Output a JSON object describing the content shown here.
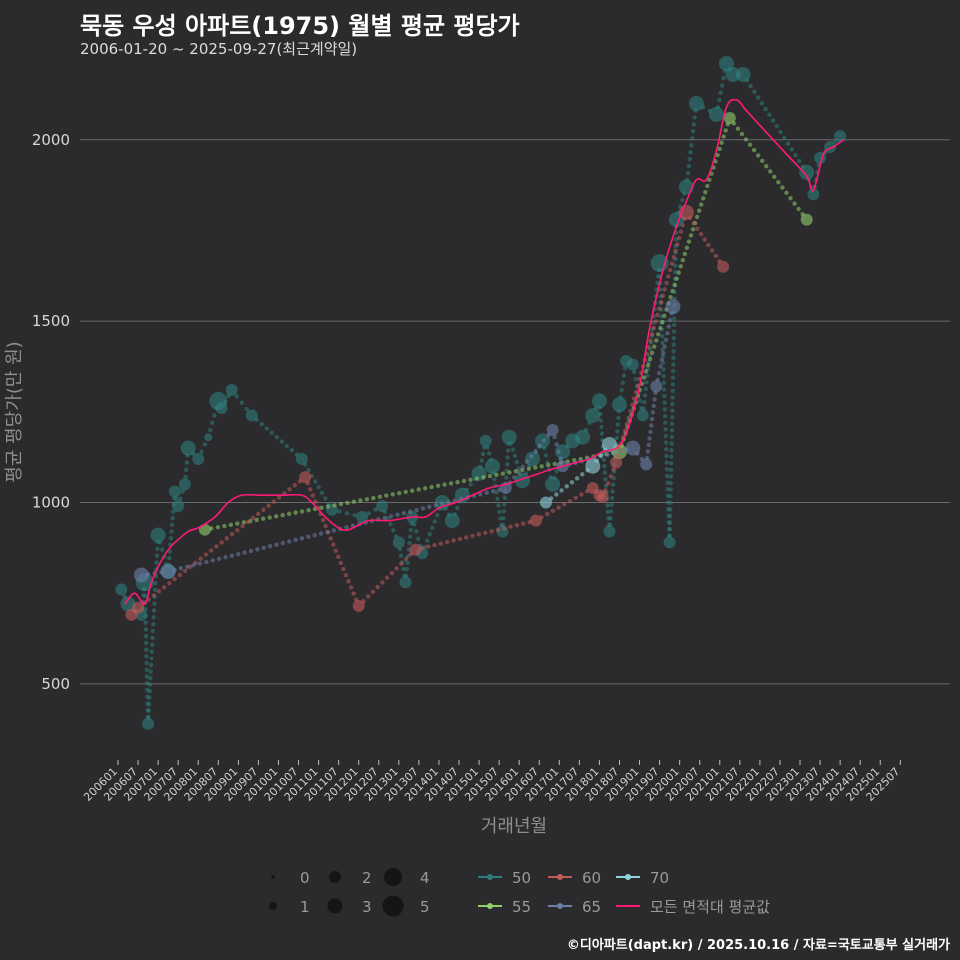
{
  "title": "묵동 우성 아파트(1975) 월별 평균 평당가",
  "subtitle": "2006-01-20 ~ 2025-09-27(최근계약일)",
  "caption": "©디아파트(dapt.kr) / 2025.10.16 / 자료=국토교통부 실거래가",
  "colors": {
    "background": "#2b2b2d",
    "s50": "#2e7d7c",
    "s55": "#8fcf6a",
    "s60": "#c25a5a",
    "s65": "#6c7fa8",
    "s70": "#8fd3dc",
    "avg": "#ff1a75"
  },
  "chart_data": {
    "type": "line",
    "xlabel": "거래년월",
    "ylabel": "평균 평당가(만 원)",
    "ylim": [
      290,
      2220
    ],
    "yticks": [
      500,
      1000,
      1500,
      2000
    ],
    "x_start": "2006-01",
    "x_end": "2025-09",
    "xticks": [
      "200601",
      "200607",
      "200701",
      "200707",
      "200801",
      "200807",
      "200901",
      "200907",
      "201001",
      "201007",
      "201101",
      "201107",
      "201201",
      "201207",
      "201301",
      "201307",
      "201401",
      "201407",
      "201501",
      "201507",
      "201601",
      "201607",
      "201701",
      "201707",
      "201801",
      "201807",
      "201901",
      "201907",
      "202001",
      "202007",
      "202101",
      "202107",
      "202201",
      "202207",
      "202301",
      "202307",
      "202401",
      "202407",
      "202501",
      "202507"
    ],
    "size_legend": {
      "title": "",
      "values": [
        "0",
        "1",
        "2",
        "3",
        "4",
        "5"
      ]
    },
    "series": [
      {
        "name": "50",
        "key": "s50",
        "points": [
          [
            "2006-02",
            760,
            2
          ],
          [
            "2006-04",
            720,
            3
          ],
          [
            "2006-08",
            690,
            2
          ],
          [
            "2006-09",
            780,
            4
          ],
          [
            "2006-10",
            390,
            2
          ],
          [
            "2006-11",
            570,
            0
          ],
          [
            "2007-01",
            910,
            3
          ],
          [
            "2007-04",
            810,
            3
          ],
          [
            "2007-06",
            1030,
            2
          ],
          [
            "2007-07",
            990,
            2
          ],
          [
            "2007-09",
            1050,
            2
          ],
          [
            "2007-10",
            1150,
            3
          ],
          [
            "2008-01",
            1120,
            2
          ],
          [
            "2008-04",
            1180,
            1
          ],
          [
            "2008-07",
            1280,
            4
          ],
          [
            "2008-08",
            1260,
            2
          ],
          [
            "2008-11",
            1310,
            2
          ],
          [
            "2009-05",
            1240,
            2
          ],
          [
            "2010-08",
            1120,
            2
          ],
          [
            "2011-05",
            980,
            2
          ],
          [
            "2012-02",
            960,
            2
          ],
          [
            "2012-08",
            990,
            2
          ],
          [
            "2013-01",
            890,
            2
          ],
          [
            "2013-03",
            780,
            2
          ],
          [
            "2013-05",
            960,
            2
          ],
          [
            "2013-08",
            860,
            2
          ],
          [
            "2014-02",
            1000,
            3
          ],
          [
            "2014-05",
            950,
            3
          ],
          [
            "2014-08",
            1020,
            3
          ],
          [
            "2015-01",
            1080,
            3
          ],
          [
            "2015-03",
            1170,
            2
          ],
          [
            "2015-05",
            1100,
            3
          ],
          [
            "2015-08",
            920,
            2
          ],
          [
            "2015-10",
            1180,
            3
          ],
          [
            "2016-02",
            1060,
            3
          ],
          [
            "2016-05",
            1120,
            3
          ],
          [
            "2016-08",
            1170,
            3
          ],
          [
            "2016-11",
            1050,
            3
          ],
          [
            "2017-02",
            1140,
            3
          ],
          [
            "2017-05",
            1170,
            3
          ],
          [
            "2017-08",
            1180,
            3
          ],
          [
            "2017-11",
            1240,
            3
          ],
          [
            "2018-01",
            1280,
            3
          ],
          [
            "2018-04",
            920,
            2
          ],
          [
            "2018-07",
            1270,
            3
          ],
          [
            "2018-09",
            1390,
            2
          ],
          [
            "2018-11",
            1380,
            2
          ],
          [
            "2019-02",
            1240,
            2
          ],
          [
            "2019-07",
            1660,
            4
          ],
          [
            "2019-10",
            890,
            2
          ],
          [
            "2019-12",
            1780,
            3
          ],
          [
            "2020-03",
            1870,
            3
          ],
          [
            "2020-06",
            2100,
            3
          ],
          [
            "2020-12",
            2070,
            3
          ],
          [
            "2021-03",
            2210,
            3
          ],
          [
            "2021-05",
            2180,
            3
          ],
          [
            "2021-08",
            2180,
            3
          ],
          [
            "2023-03",
            1910,
            3
          ],
          [
            "2023-05",
            1850,
            2
          ],
          [
            "2023-07",
            1950,
            2
          ],
          [
            "2023-10",
            1980,
            2
          ],
          [
            "2024-01",
            2010,
            2
          ]
        ]
      },
      {
        "name": "55",
        "key": "s55",
        "points": [
          [
            "2008-03",
            925,
            2
          ],
          [
            "2018-07",
            1140,
            3
          ],
          [
            "2021-04",
            2060,
            2
          ],
          [
            "2023-03",
            1780,
            2
          ]
        ]
      },
      {
        "name": "60",
        "key": "s60",
        "points": [
          [
            "2006-05",
            690,
            2
          ],
          [
            "2006-07",
            710,
            2
          ],
          [
            "2010-09",
            1070,
            2
          ],
          [
            "2012-01",
            715,
            2
          ],
          [
            "2013-06",
            870,
            2
          ],
          [
            "2016-06",
            950,
            2
          ],
          [
            "2017-11",
            1040,
            2
          ],
          [
            "2018-01",
            1020,
            2
          ],
          [
            "2018-02",
            1015,
            2
          ],
          [
            "2018-06",
            1110,
            2
          ],
          [
            "2020-03",
            1800,
            3
          ],
          [
            "2021-02",
            1650,
            2
          ]
        ]
      },
      {
        "name": "65",
        "key": "s65",
        "points": [
          [
            "2006-08",
            800,
            3
          ],
          [
            "2007-04",
            810,
            3
          ],
          [
            "2015-09",
            1040,
            2
          ],
          [
            "2016-11",
            1200,
            2
          ],
          [
            "2017-02",
            1100,
            2
          ],
          [
            "2018-11",
            1150,
            3
          ],
          [
            "2019-03",
            1105,
            2
          ],
          [
            "2019-06",
            1320,
            2
          ],
          [
            "2019-11",
            1540,
            3
          ]
        ]
      },
      {
        "name": "70",
        "key": "s70",
        "points": [
          [
            "2016-09",
            1000,
            2
          ],
          [
            "2017-11",
            1100,
            3
          ],
          [
            "2018-04",
            1160,
            3
          ]
        ]
      },
      {
        "name": "모든 면적대 평균값",
        "key": "avg",
        "points": [
          [
            "2006-03",
            720
          ],
          [
            "2006-06",
            750
          ],
          [
            "2006-09",
            720
          ],
          [
            "2006-11",
            780
          ],
          [
            "2007-02",
            840
          ],
          [
            "2007-05",
            880
          ],
          [
            "2007-10",
            920
          ],
          [
            "2008-01",
            930
          ],
          [
            "2008-06",
            960
          ],
          [
            "2008-10",
            1000
          ],
          [
            "2009-02",
            1020
          ],
          [
            "2009-08",
            1020
          ],
          [
            "2010-02",
            1020
          ],
          [
            "2010-08",
            1020
          ],
          [
            "2010-11",
            1000
          ],
          [
            "2011-03",
            960
          ],
          [
            "2011-07",
            930
          ],
          [
            "2011-10",
            925
          ],
          [
            "2012-04",
            950
          ],
          [
            "2012-10",
            950
          ],
          [
            "2013-05",
            960
          ],
          [
            "2013-09",
            960
          ],
          [
            "2014-01",
            985
          ],
          [
            "2014-06",
            1000
          ],
          [
            "2014-11",
            1020
          ],
          [
            "2015-04",
            1040
          ],
          [
            "2015-09",
            1050
          ],
          [
            "2016-02",
            1065
          ],
          [
            "2016-07",
            1080
          ],
          [
            "2016-10",
            1090
          ],
          [
            "2017-02",
            1100
          ],
          [
            "2017-06",
            1110
          ],
          [
            "2017-10",
            1120
          ],
          [
            "2018-02",
            1140
          ],
          [
            "2018-06",
            1150
          ],
          [
            "2018-09",
            1190
          ],
          [
            "2019-01",
            1320
          ],
          [
            "2019-04",
            1480
          ],
          [
            "2019-08",
            1640
          ],
          [
            "2019-12",
            1760
          ],
          [
            "2020-03",
            1830
          ],
          [
            "2020-06",
            1890
          ],
          [
            "2020-09",
            1890
          ],
          [
            "2020-12",
            1970
          ],
          [
            "2021-03",
            2090
          ],
          [
            "2021-06",
            2110
          ],
          [
            "2021-09",
            2080
          ],
          [
            "2022-03",
            2020
          ],
          [
            "2022-09",
            1960
          ],
          [
            "2023-03",
            1900
          ],
          [
            "2023-05",
            1860
          ],
          [
            "2023-08",
            1960
          ],
          [
            "2023-11",
            1980
          ],
          [
            "2024-02",
            2000
          ]
        ]
      }
    ]
  }
}
